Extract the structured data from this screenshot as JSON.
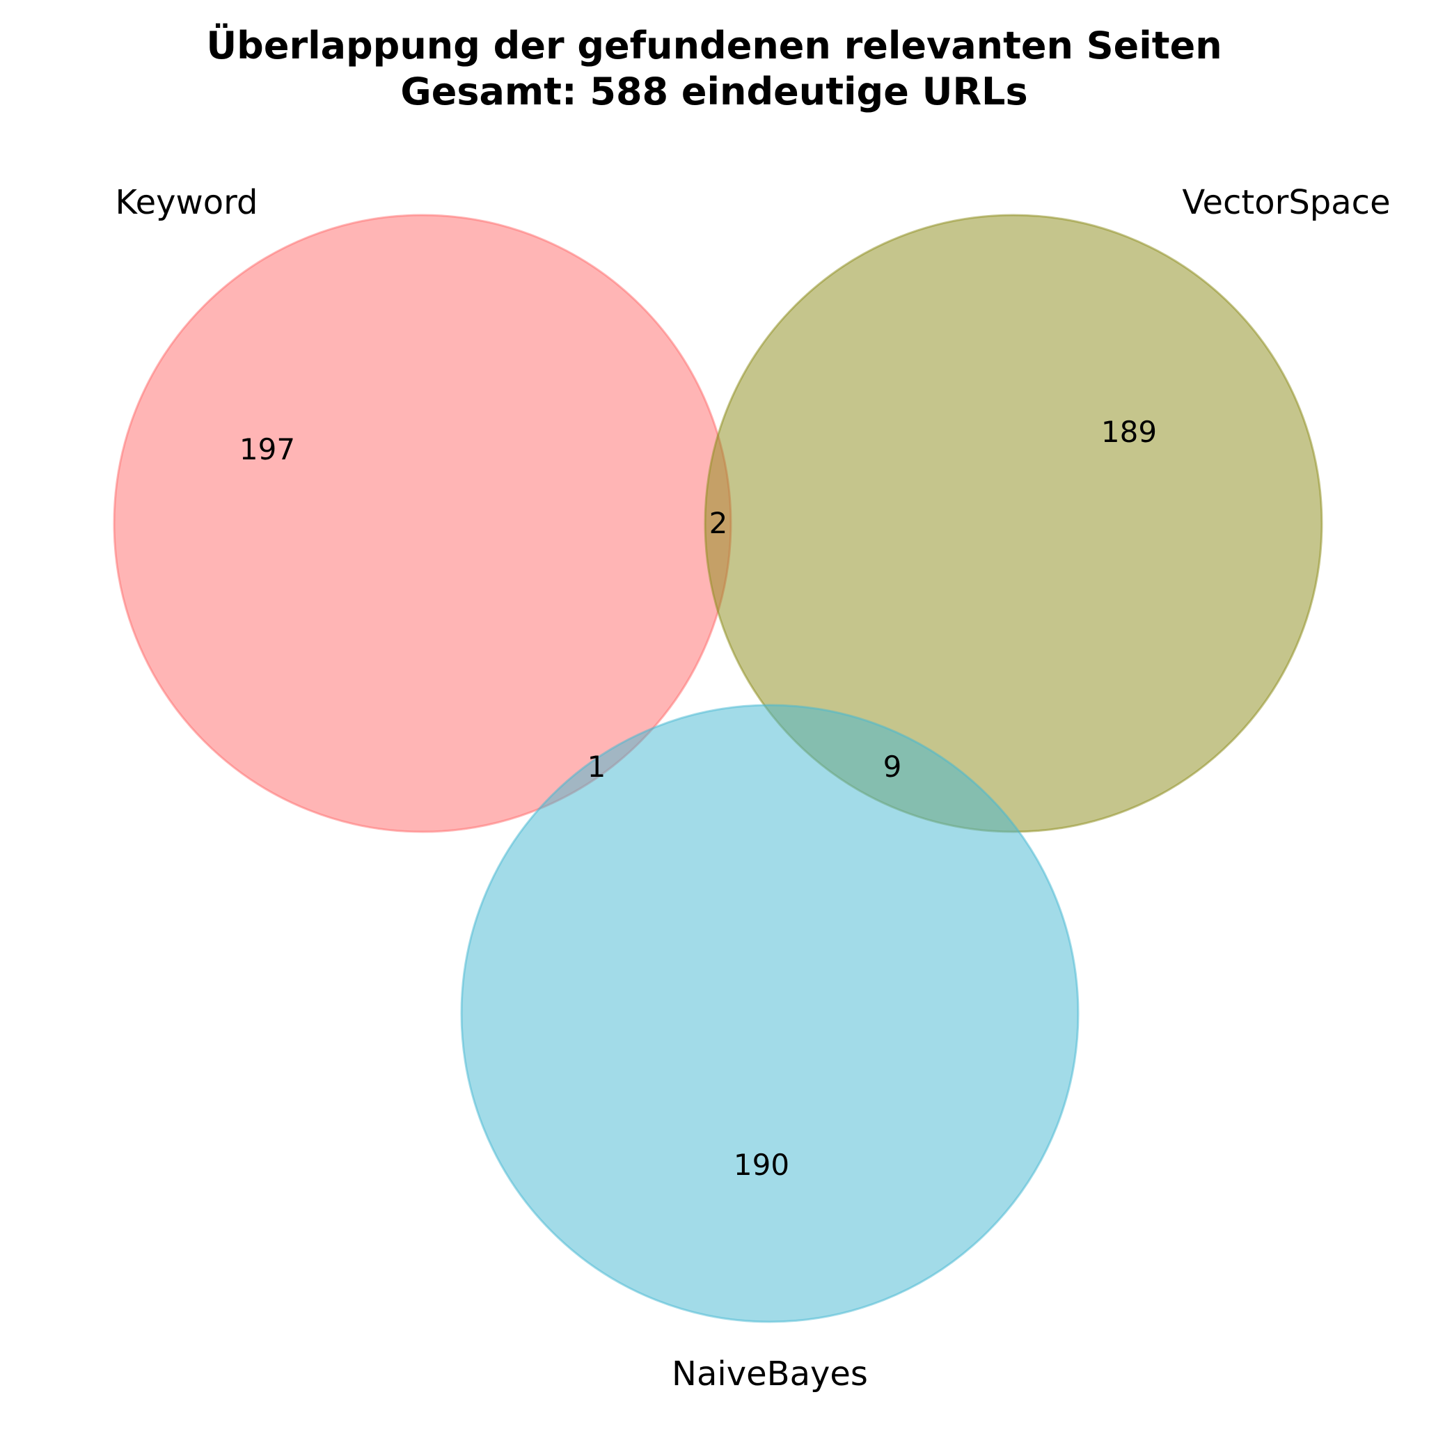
{
  "title": {
    "line1": "Überlappung der gefundenen relevanten Seiten",
    "line2": "Gesamt: 588 eindeutige URLs"
  },
  "chart_data": {
    "type": "venn3",
    "sets": [
      {
        "name": "Keyword",
        "color": "#ff6b6b"
      },
      {
        "name": "VectorSpace",
        "color": "#8c8c1a"
      },
      {
        "name": "NaiveBayes",
        "color": "#45b7d1"
      }
    ],
    "regions": {
      "keyword_only": "197",
      "vectorspace_only": "189",
      "naivebayes_only": "190",
      "keyword_vectorspace": "2",
      "keyword_naivebayes": "1",
      "vectorspace_naivebayes": "9"
    }
  }
}
